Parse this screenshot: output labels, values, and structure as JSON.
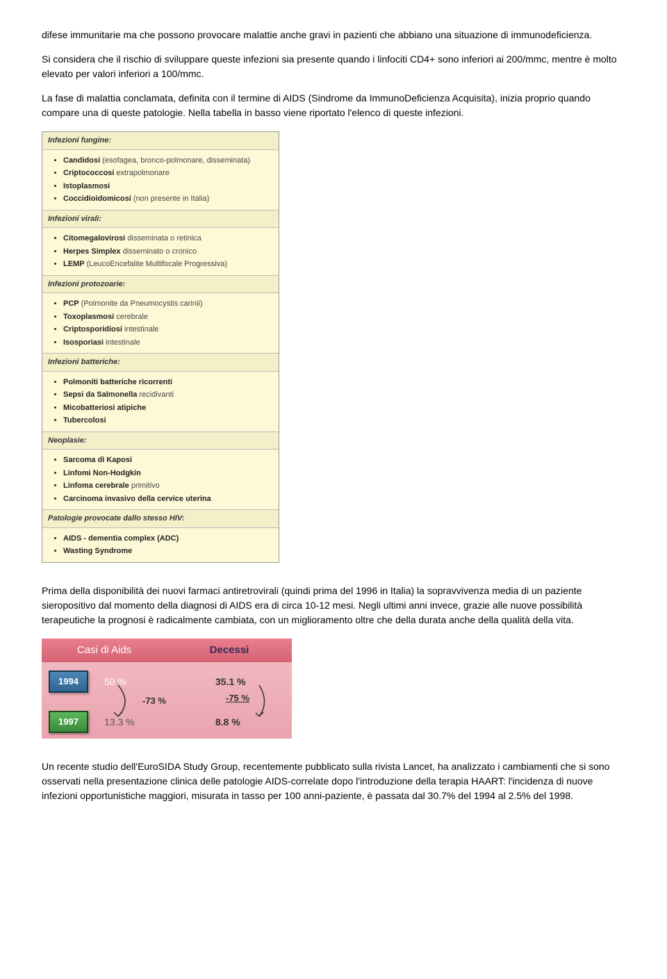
{
  "para1": "difese immunitarie ma che possono provocare malattie anche gravi in pazienti che abbiano una situazione di immunodeficienza.",
  "para2": "Si considera che il rischio di sviluppare queste infezioni sia presente quando i linfociti CD4+ sono inferiori ai 200/mmc, mentre è molto elevato per valori inferiori a 100/mmc.",
  "para3": "La fase di malattia conclamata, definita con il termine di AIDS (Sindrome da ImmunoDeficienza Acquisita), inizia proprio quando compare una di queste patologie. Nella tabella in basso viene riportato l'elenco di queste infezioni.",
  "sections": [
    {
      "title": "Infezioni fungine:",
      "items": [
        {
          "bold": "Candidosi",
          "suffix": " (esofagea, bronco-polmonare, disseminata)"
        },
        {
          "bold": "Criptococcosi",
          "suffix": " extrapolmonare"
        },
        {
          "bold": "Istoplasmosi",
          "suffix": ""
        },
        {
          "bold": "Coccidioidomicosi",
          "suffix": " (non presente in Italia)"
        }
      ]
    },
    {
      "title": "Infezioni virali:",
      "items": [
        {
          "bold": "Citomegalovirosi",
          "suffix": " disseminata o retinica"
        },
        {
          "bold": "Herpes Simplex",
          "suffix": " disseminato o cronico"
        },
        {
          "bold": "LEMP",
          "suffix": " (LeucoEncefalite Multifocale Progressiva)"
        }
      ]
    },
    {
      "title": "Infezioni protozoarie:",
      "items": [
        {
          "bold": "PCP",
          "suffix": " (Polmonite da Pneumocystis carinii)"
        },
        {
          "bold": "Toxoplasmosi",
          "suffix": " cerebrale"
        },
        {
          "bold": "Criptosporidiosi",
          "suffix": " intestinale"
        },
        {
          "bold": "Isosporiasi",
          "suffix": " intestinale"
        }
      ]
    },
    {
      "title": "Infezioni batteriche:",
      "items": [
        {
          "bold": "Polmoniti batteriche ricorrenti",
          "suffix": ""
        },
        {
          "bold": "Sepsi da Salmonella",
          "suffix": " recidivanti"
        },
        {
          "bold": "Micobatteriosi atipiche",
          "suffix": ""
        },
        {
          "bold": "Tubercolosi",
          "suffix": ""
        }
      ]
    },
    {
      "title": "Neoplasie:",
      "items": [
        {
          "bold": "Sarcoma di Kaposi",
          "suffix": ""
        },
        {
          "bold": "Linfomi Non-Hodgkin",
          "suffix": ""
        },
        {
          "bold": "Linfoma cerebrale",
          "suffix": " primitivo"
        },
        {
          "bold": "Carcinoma invasivo della cervice uterina",
          "suffix": ""
        }
      ]
    },
    {
      "title": "Patologie provocate dallo stesso HIV:",
      "items": [
        {
          "bold": "AIDS - dementia complex (ADC)",
          "suffix": ""
        },
        {
          "bold": "Wasting Syndrome",
          "suffix": ""
        }
      ]
    }
  ],
  "para4": "Prima della disponibilità dei nuovi farmaci antiretrovirali (quindi prima del 1996 in Italia) la sopravvivenza media di un paziente sieropositivo dal momento della diagnosi di AIDS era di circa 10-12 mesi. Negli ultimi anni invece, grazie alle nuove possibilità terapeutiche la prognosi è radicalmente cambiata, con un miglioramento oltre che della durata anche della qualità della vita.",
  "aids_chart": {
    "col_cases": "Casi di Aids",
    "col_deaths": "Decessi",
    "year1": "1994",
    "year2": "1997",
    "cases1": "50 %",
    "cases2": "13.3 %",
    "deaths1": "35.1 %",
    "deaths2": "8.8 %",
    "delta_cases": "-73 %",
    "delta_deaths": "-75 %"
  },
  "para5": "Un recente studio dell'EuroSIDA Study Group, recentemente pubblicato sulla rivista Lancet, ha analizzato i cambiamenti che si sono osservati nella presentazione clinica delle patologie AIDS-correlate dopo l'introduzione della terapia HAART: l'incidenza di nuove infezioni opportunistiche maggiori, misurata in tasso per 100 anni-paziente, è passata dal 30.7% del 1994 al 2.5% del 1998."
}
